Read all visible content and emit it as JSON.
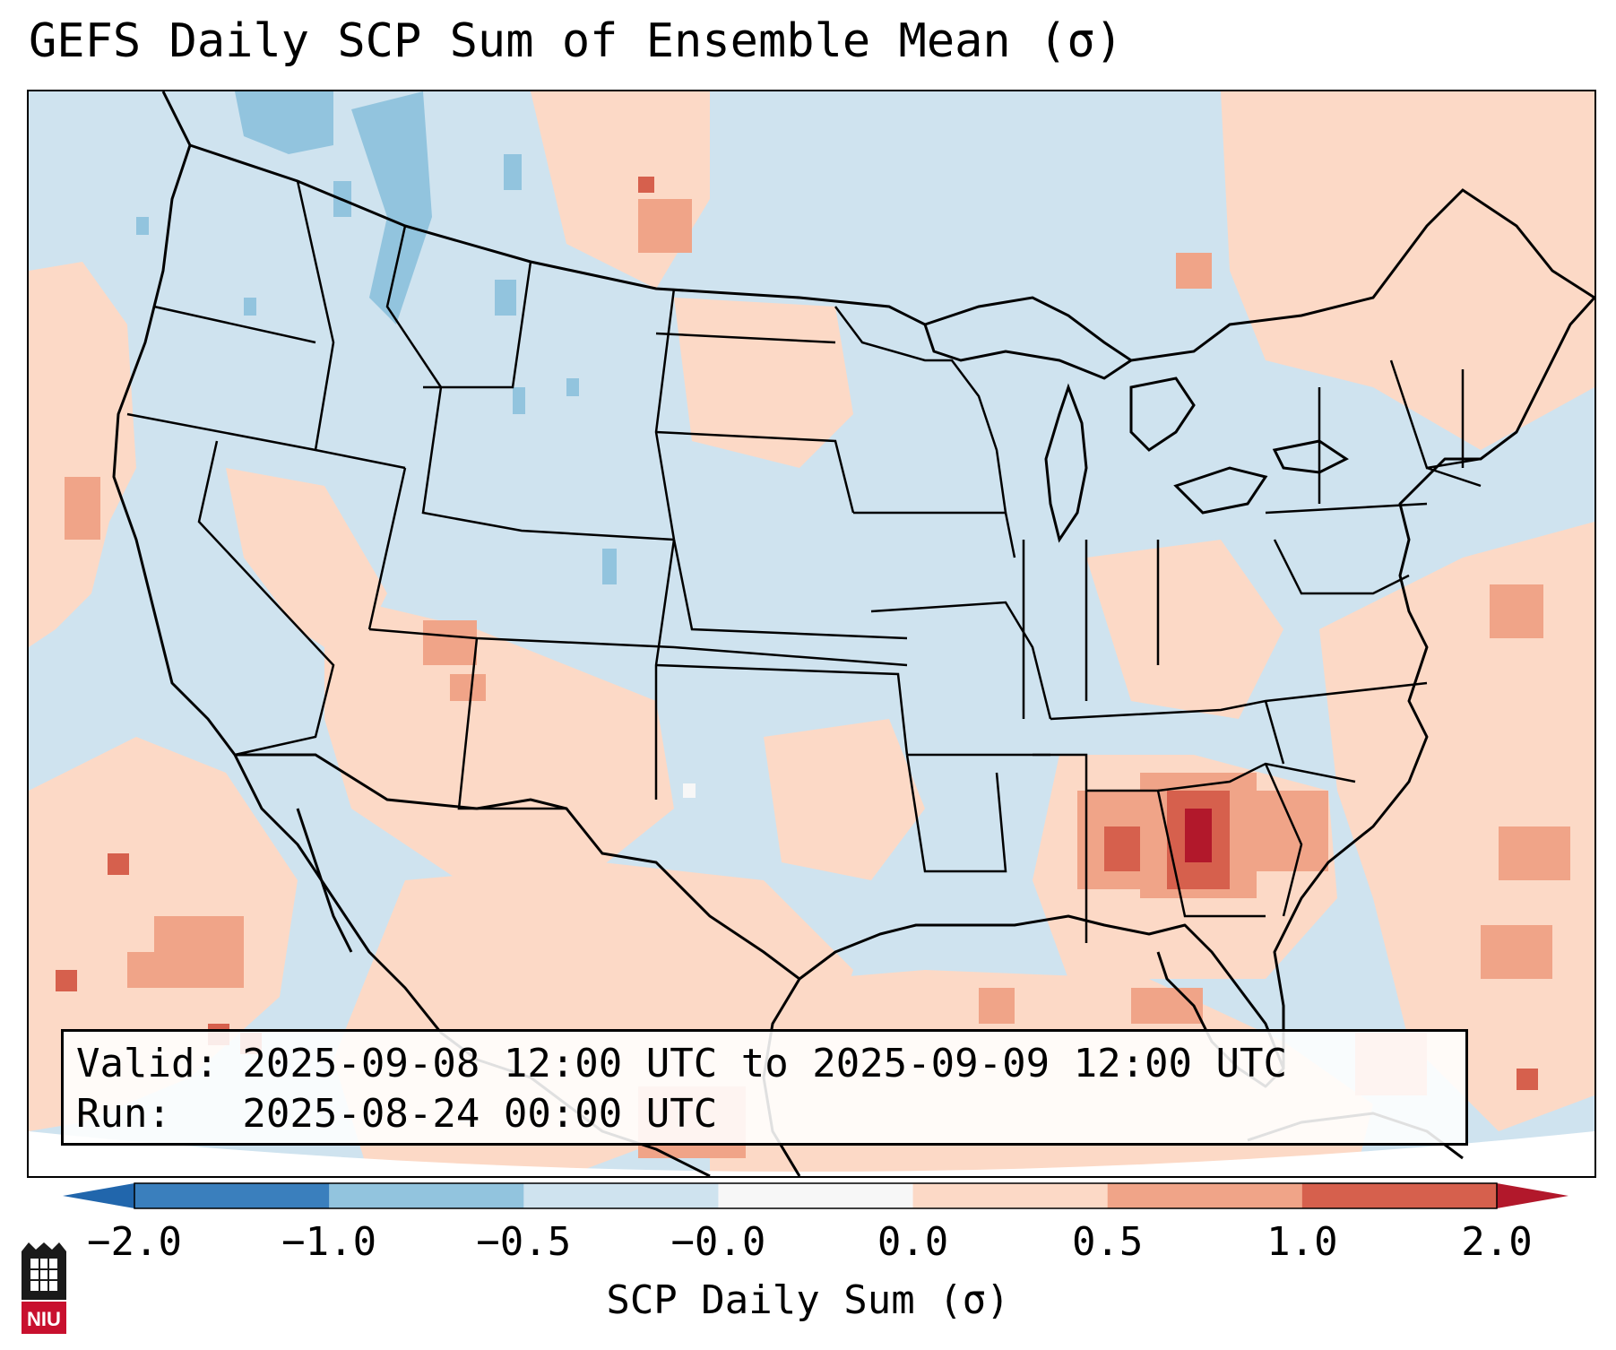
{
  "title": "GEFS Daily SCP Sum of Ensemble Mean (σ)",
  "info": {
    "valid_line": "Valid: 2025-09-08 12:00 UTC to 2025-09-09 12:00 UTC",
    "run_line": "Run:   2025-08-24 00:00 UTC"
  },
  "colorbar": {
    "label": "SCP Daily Sum (σ)",
    "tick_labels": [
      "−2.0",
      "−1.0",
      "−0.5",
      "−0.0",
      "0.0",
      "0.5",
      "1.0",
      "2.0"
    ],
    "bins": [
      {
        "color": "#3a7fbd"
      },
      {
        "color": "#92c4de"
      },
      {
        "color": "#cfe3ef"
      },
      {
        "color": "#f7f7f7"
      },
      {
        "color": "#fcd9c6"
      },
      {
        "color": "#f0a488"
      },
      {
        "color": "#d6604d"
      }
    ],
    "extend_low_color": "#2166ac",
    "extend_high_color": "#b2182b"
  },
  "colors": {
    "background_negative": "#cfe3ef",
    "positive_light": "#fcd9c6",
    "positive_medium": "#f0a488",
    "positive_strong": "#d6604d",
    "positive_max": "#b2182b",
    "negative_medium": "#92c4de",
    "borders": "#000000"
  },
  "logo": {
    "text": "NIU",
    "icon": "niu-university-logo-icon"
  }
}
